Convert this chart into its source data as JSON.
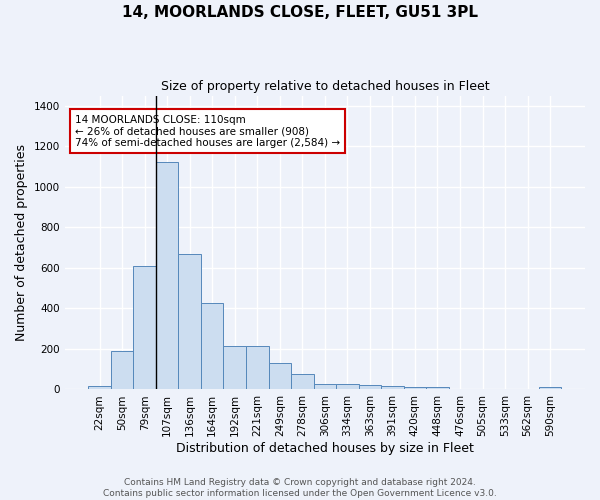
{
  "title": "14, MOORLANDS CLOSE, FLEET, GU51 3PL",
  "subtitle": "Size of property relative to detached houses in Fleet",
  "xlabel": "Distribution of detached houses by size in Fleet",
  "ylabel": "Number of detached properties",
  "footnote1": "Contains HM Land Registry data © Crown copyright and database right 2024.",
  "footnote2": "Contains public sector information licensed under the Open Government Licence v3.0.",
  "categories": [
    "22sqm",
    "50sqm",
    "79sqm",
    "107sqm",
    "136sqm",
    "164sqm",
    "192sqm",
    "221sqm",
    "249sqm",
    "278sqm",
    "306sqm",
    "334sqm",
    "363sqm",
    "391sqm",
    "420sqm",
    "448sqm",
    "476sqm",
    "505sqm",
    "533sqm",
    "562sqm",
    "590sqm"
  ],
  "values": [
    15,
    190,
    610,
    1120,
    670,
    425,
    215,
    215,
    130,
    75,
    28,
    25,
    20,
    15,
    10,
    10,
    0,
    0,
    0,
    0,
    10
  ],
  "bar_color": "#ccddf0",
  "bar_edge_color": "#5588bb",
  "background_color": "#eef2fa",
  "grid_color": "#ffffff",
  "annotation_text": "14 MOORLANDS CLOSE: 110sqm\n← 26% of detached houses are smaller (908)\n74% of semi-detached houses are larger (2,584) →",
  "annotation_box_color": "#ffffff",
  "annotation_box_edge_color": "#cc0000",
  "vline_x_index": 3,
  "ylim": [
    0,
    1450
  ],
  "yticks": [
    0,
    200,
    400,
    600,
    800,
    1000,
    1200,
    1400
  ],
  "title_fontsize": 11,
  "subtitle_fontsize": 9,
  "ylabel_fontsize": 9,
  "xlabel_fontsize": 9,
  "tick_fontsize": 7.5,
  "annotation_fontsize": 7.5,
  "footnote_fontsize": 6.5
}
